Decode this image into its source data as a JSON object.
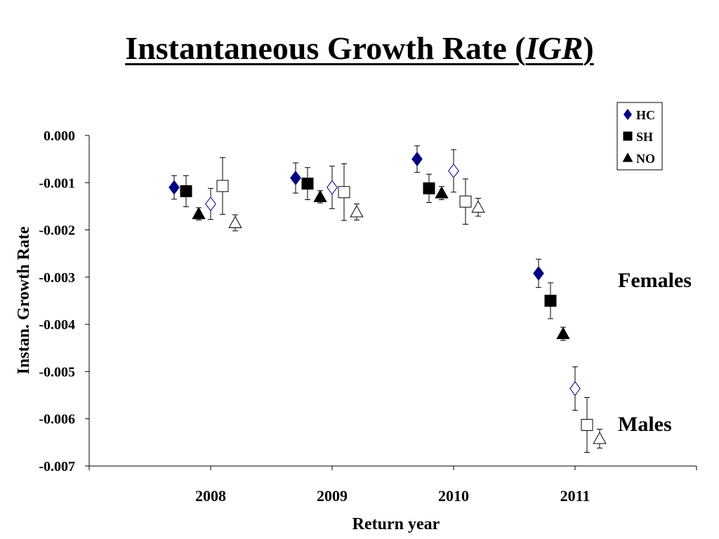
{
  "title": {
    "main": "Instantaneous Growth Rate (",
    "italic": "IGR",
    "close": ")"
  },
  "chart_data": {
    "type": "scatter",
    "xlabel": "Return year",
    "ylabel": "Instan. Growth Rate",
    "categories": [
      "2008",
      "2009",
      "2010",
      "2011"
    ],
    "ylim": [
      -0.007,
      0.0
    ],
    "yticks": [
      "0.000",
      "-0.001",
      "-0.002",
      "-0.003",
      "-0.004",
      "-0.005",
      "-0.006",
      "-0.007"
    ],
    "legend_position": "top-right",
    "annotations": [
      "Females",
      "Males"
    ],
    "series": [
      {
        "name": "HC",
        "group": "Females",
        "marker": "diamond",
        "filled": true,
        "color": "#000080",
        "values": [
          -0.0011,
          -0.0009,
          -0.0005,
          -0.00292
        ],
        "err": [
          0.00025,
          0.00032,
          0.00028,
          0.0003
        ]
      },
      {
        "name": "SH",
        "group": "Females",
        "marker": "square",
        "filled": true,
        "color": "#000000",
        "values": [
          -0.00118,
          -0.00102,
          -0.00112,
          -0.0035
        ],
        "err": [
          0.00033,
          0.00034,
          0.0003,
          0.00038
        ]
      },
      {
        "name": "NO",
        "group": "Females",
        "marker": "triangle",
        "filled": true,
        "color": "#000000",
        "values": [
          -0.00166,
          -0.0013,
          -0.00122,
          -0.0042
        ],
        "err": [
          0.00013,
          0.00013,
          0.00014,
          0.00014
        ]
      },
      {
        "name": "HC",
        "group": "Males",
        "marker": "diamond",
        "filled": false,
        "color": "#000080",
        "values": [
          -0.00145,
          -0.0011,
          -0.00075,
          -0.00536
        ],
        "err": [
          0.00033,
          0.00045,
          0.00045,
          0.00046
        ]
      },
      {
        "name": "SH",
        "group": "Males",
        "marker": "square",
        "filled": false,
        "color": "#000000",
        "values": [
          -0.00107,
          -0.0012,
          -0.0014,
          -0.00613
        ],
        "err": [
          0.0006,
          0.0006,
          0.00048,
          0.00058
        ]
      },
      {
        "name": "NO",
        "group": "Males",
        "marker": "triangle",
        "filled": false,
        "color": "#000000",
        "values": [
          -0.00185,
          -0.00162,
          -0.00152,
          -0.00642
        ],
        "err": [
          0.00017,
          0.00017,
          0.00019,
          0.0002
        ]
      }
    ],
    "legend": [
      {
        "label": "HC",
        "marker": "diamond",
        "color": "#000080"
      },
      {
        "label": "SH",
        "marker": "square",
        "color": "#000000"
      },
      {
        "label": "NO",
        "marker": "triangle",
        "color": "#000000"
      }
    ]
  }
}
